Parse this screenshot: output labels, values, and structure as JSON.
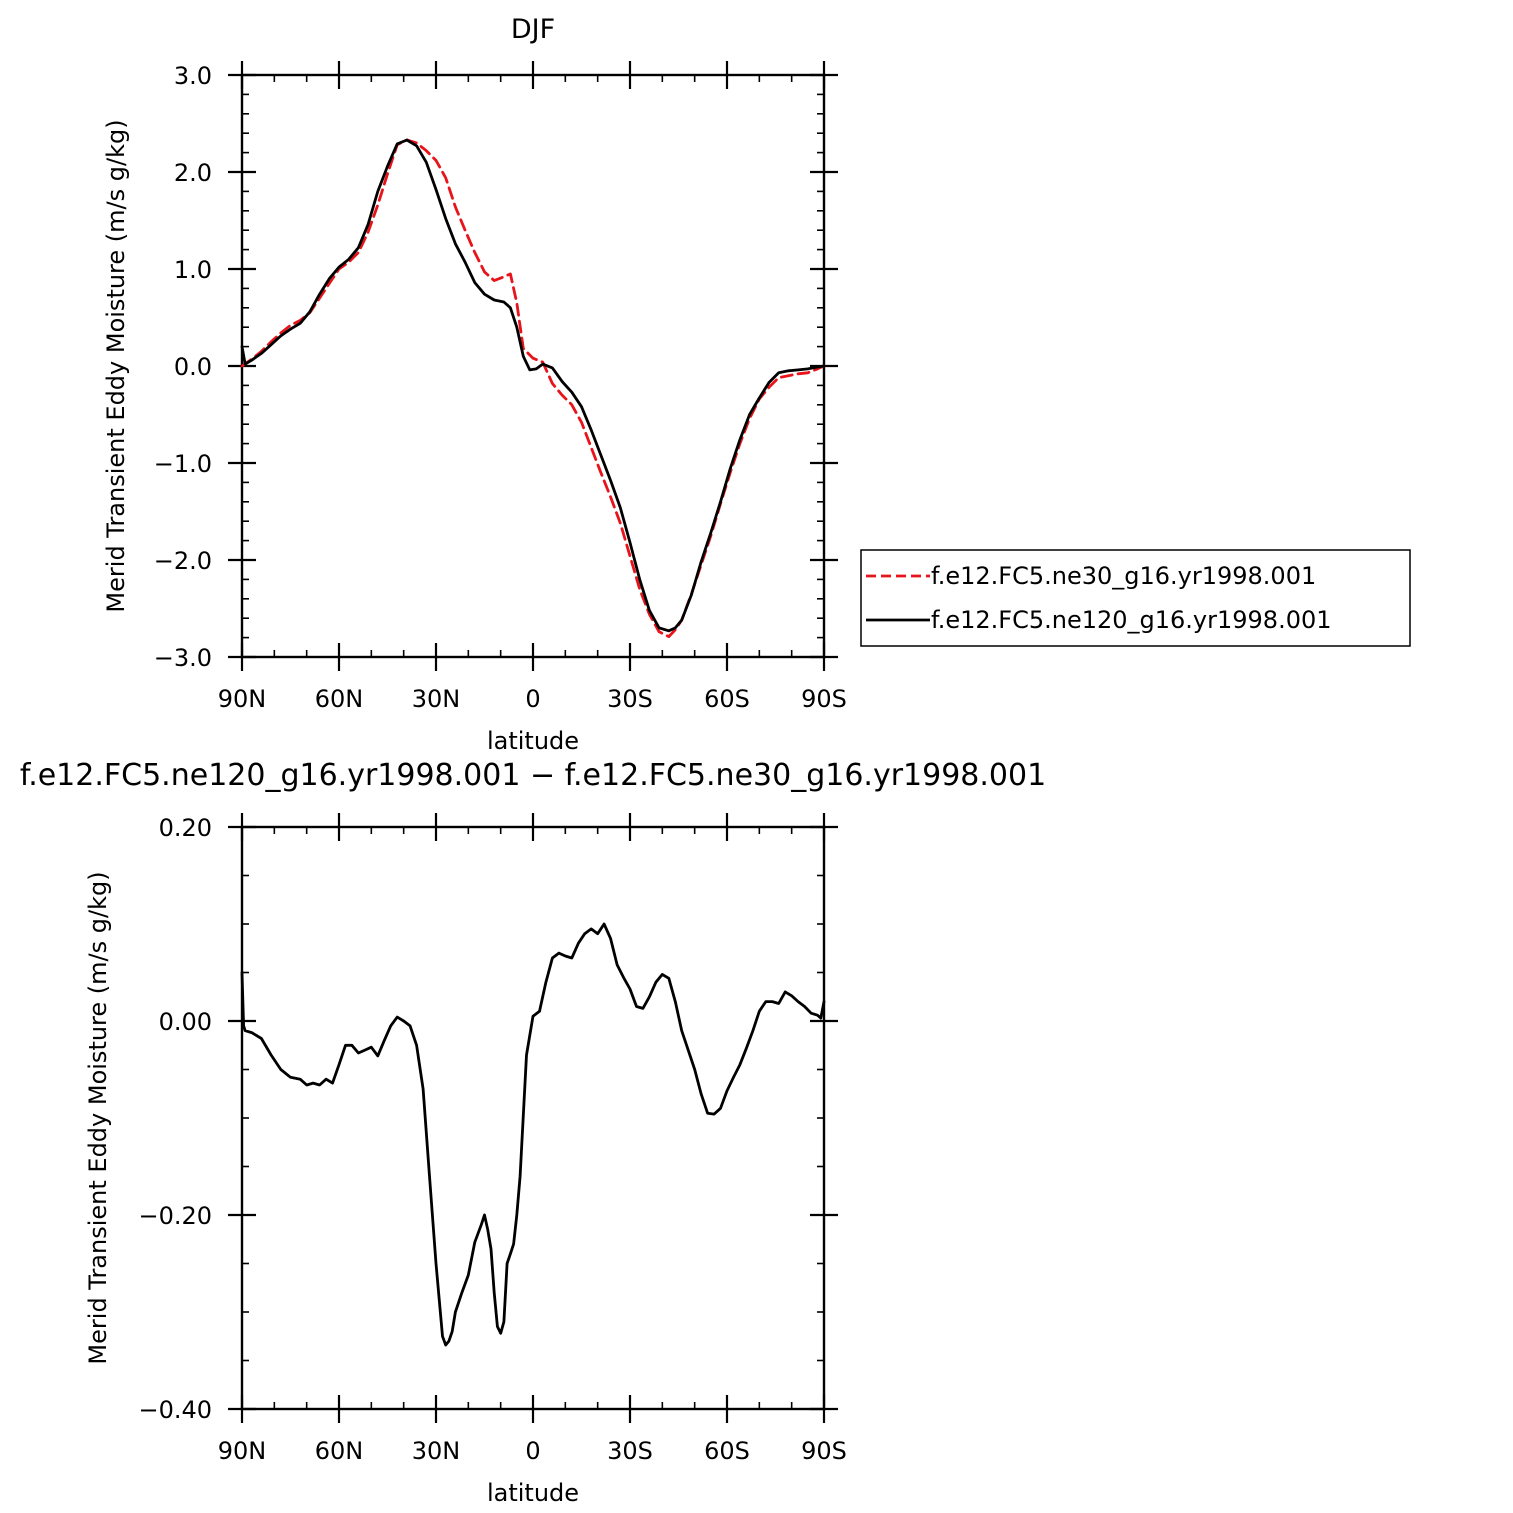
{
  "chart_data": [
    {
      "type": "line",
      "title": "DJF",
      "xlabel": "latitude",
      "ylabel": "Merid Transient Eddy Moisture (m/s g/kg)",
      "x_ticks": [
        {
          "lat": 90,
          "label": "90N"
        },
        {
          "lat": 60,
          "label": "60N"
        },
        {
          "lat": 30,
          "label": "30N"
        },
        {
          "lat": 0,
          "label": "0"
        },
        {
          "lat": -30,
          "label": "30S"
        },
        {
          "lat": -60,
          "label": "60S"
        },
        {
          "lat": -90,
          "label": "90S"
        }
      ],
      "xlim": [
        90,
        -90
      ],
      "ylim": [
        -3.0,
        3.0
      ],
      "y_ticks": [
        {
          "value": 3.0,
          "label": "3.0"
        },
        {
          "value": 2.0,
          "label": "2.0"
        },
        {
          "value": 1.0,
          "label": "1.0"
        },
        {
          "value": 0.0,
          "label": "0.0"
        },
        {
          "value": -1.0,
          "label": "−1.0"
        },
        {
          "value": -2.0,
          "label": "−2.0"
        },
        {
          "value": -3.0,
          "label": "−3.0"
        }
      ],
      "legend": {
        "placement": "right"
      },
      "series": [
        {
          "name": "f.e12.FC5.ne30_g16.yr1998.001",
          "color": "#e8141b",
          "style": "dashed",
          "x": [
            90,
            87,
            84,
            81,
            78,
            75,
            72,
            69,
            66,
            63,
            60,
            57,
            54,
            51,
            48,
            45,
            42,
            39,
            36,
            33,
            30,
            27,
            24,
            21,
            18,
            15,
            12,
            9,
            7,
            5,
            3,
            0,
            -3,
            -6,
            -9,
            -12,
            -15,
            -18,
            -21,
            -24,
            -27,
            -30,
            -33,
            -36,
            -39,
            -42,
            -44,
            -46,
            -49,
            -52,
            -55,
            -58,
            -61,
            -64,
            -67,
            -70,
            -73,
            -76,
            -79,
            -82,
            -85,
            -88,
            -90
          ],
          "y": [
            0.0,
            0.07,
            0.15,
            0.25,
            0.34,
            0.42,
            0.47,
            0.55,
            0.7,
            0.85,
            1.0,
            1.07,
            1.17,
            1.38,
            1.66,
            1.98,
            2.28,
            2.33,
            2.3,
            2.22,
            2.12,
            1.94,
            1.64,
            1.4,
            1.17,
            0.97,
            0.88,
            0.92,
            0.95,
            0.65,
            0.18,
            0.08,
            0.04,
            -0.18,
            -0.3,
            -0.4,
            -0.58,
            -0.84,
            -1.1,
            -1.35,
            -1.62,
            -1.96,
            -2.3,
            -2.56,
            -2.74,
            -2.79,
            -2.72,
            -2.62,
            -2.35,
            -2.05,
            -1.75,
            -1.42,
            -1.1,
            -0.8,
            -0.54,
            -0.34,
            -0.22,
            -0.12,
            -0.1,
            -0.08,
            -0.07,
            -0.03,
            0.0
          ]
        },
        {
          "name": "f.e12.FC5.ne120_g16.yr1998.001",
          "color": "#000000",
          "style": "solid",
          "x": [
            90,
            89,
            87,
            84,
            81,
            78,
            75,
            72,
            69,
            66,
            63,
            60,
            57,
            54,
            51,
            48,
            45,
            42,
            39,
            36,
            33,
            30,
            27,
            24,
            21,
            18,
            15,
            12,
            9,
            7,
            5,
            3,
            1,
            -1,
            -3,
            -6,
            -9,
            -12,
            -15,
            -18,
            -21,
            -24,
            -27,
            -30,
            -33,
            -36,
            -39,
            -42,
            -44,
            -46,
            -49,
            -52,
            -55,
            -58,
            -61,
            -64,
            -67,
            -70,
            -73,
            -76,
            -79,
            -82,
            -85,
            -88,
            -90
          ],
          "y": [
            0.2,
            0.02,
            0.06,
            0.13,
            0.22,
            0.31,
            0.38,
            0.44,
            0.56,
            0.74,
            0.9,
            1.02,
            1.1,
            1.22,
            1.46,
            1.8,
            2.06,
            2.29,
            2.33,
            2.27,
            2.1,
            1.82,
            1.52,
            1.26,
            1.07,
            0.86,
            0.74,
            0.68,
            0.66,
            0.6,
            0.4,
            0.1,
            -0.04,
            -0.03,
            0.02,
            -0.02,
            -0.16,
            -0.27,
            -0.42,
            -0.66,
            -0.92,
            -1.18,
            -1.46,
            -1.82,
            -2.2,
            -2.52,
            -2.7,
            -2.73,
            -2.7,
            -2.62,
            -2.36,
            -2.02,
            -1.72,
            -1.4,
            -1.06,
            -0.76,
            -0.5,
            -0.33,
            -0.17,
            -0.07,
            -0.05,
            -0.04,
            -0.03,
            -0.01,
            0.0
          ]
        }
      ]
    },
    {
      "type": "line",
      "title": "f.e12.FC5.ne120_g16.yr1998.001 − f.e12.FC5.ne30_g16.yr1998.001",
      "xlabel": "latitude",
      "ylabel": "Merid Transient Eddy Moisture (m/s g/kg)",
      "x_ticks": [
        {
          "lat": 90,
          "label": "90N"
        },
        {
          "lat": 60,
          "label": "60N"
        },
        {
          "lat": 30,
          "label": "30N"
        },
        {
          "lat": 0,
          "label": "0"
        },
        {
          "lat": -30,
          "label": "30S"
        },
        {
          "lat": -60,
          "label": "60S"
        },
        {
          "lat": -90,
          "label": "90S"
        }
      ],
      "xlim": [
        90,
        -90
      ],
      "ylim": [
        -0.4,
        0.2
      ],
      "y_ticks": [
        {
          "value": 0.2,
          "label": "0.20"
        },
        {
          "value": 0.0,
          "label": "0.00"
        },
        {
          "value": -0.2,
          "label": "−0.20"
        },
        {
          "value": -0.4,
          "label": "−0.40"
        }
      ],
      "series": [
        {
          "name": "",
          "color": "#000000",
          "style": "solid",
          "x": [
            90,
            89.5,
            89,
            87,
            84,
            81,
            78,
            75,
            72,
            70,
            68,
            66,
            64,
            62,
            60,
            58,
            56,
            54,
            52,
            50,
            48,
            46,
            44,
            42,
            40,
            38,
            36,
            34,
            32,
            30,
            28,
            27,
            26,
            25,
            24,
            22,
            20,
            18,
            16,
            15,
            14,
            13,
            12,
            11,
            10,
            9,
            8,
            7,
            6,
            5,
            4,
            2,
            0,
            -2,
            -4,
            -6,
            -8,
            -10,
            -12,
            -14,
            -16,
            -18,
            -20,
            -22,
            -24,
            -26,
            -28,
            -30,
            -32,
            -34,
            -36,
            -38,
            -40,
            -42,
            -44,
            -46,
            -48,
            -50,
            -52,
            -54,
            -56,
            -58,
            -60,
            -62,
            -64,
            -66,
            -68,
            -70,
            -72,
            -74,
            -76,
            -78,
            -80,
            -82,
            -84,
            -86,
            -88,
            -89,
            -90
          ],
          "y": [
            0.05,
            -0.005,
            -0.01,
            -0.012,
            -0.018,
            -0.035,
            -0.05,
            -0.058,
            -0.06,
            -0.066,
            -0.064,
            -0.066,
            -0.06,
            -0.064,
            -0.045,
            -0.025,
            -0.025,
            -0.033,
            -0.03,
            -0.027,
            -0.036,
            -0.02,
            -0.005,
            0.004,
            0.0,
            -0.005,
            -0.025,
            -0.07,
            -0.16,
            -0.25,
            -0.325,
            -0.334,
            -0.33,
            -0.32,
            -0.3,
            -0.28,
            -0.262,
            -0.228,
            -0.21,
            -0.2,
            -0.215,
            -0.235,
            -0.28,
            -0.315,
            -0.322,
            -0.31,
            -0.25,
            -0.24,
            -0.23,
            -0.2,
            -0.16,
            -0.035,
            0.005,
            0.01,
            0.04,
            0.065,
            0.07,
            0.067,
            0.065,
            0.08,
            0.09,
            0.095,
            0.09,
            0.1,
            0.085,
            0.058,
            0.045,
            0.033,
            0.015,
            0.013,
            0.025,
            0.04,
            0.048,
            0.044,
            0.02,
            -0.01,
            -0.03,
            -0.05,
            -0.075,
            -0.095,
            -0.096,
            -0.09,
            -0.072,
            -0.058,
            -0.045,
            -0.028,
            -0.01,
            0.01,
            0.02,
            0.02,
            0.018,
            0.03,
            0.026,
            0.02,
            0.015,
            0.008,
            0.006,
            0.003,
            0.02
          ]
        }
      ]
    }
  ]
}
